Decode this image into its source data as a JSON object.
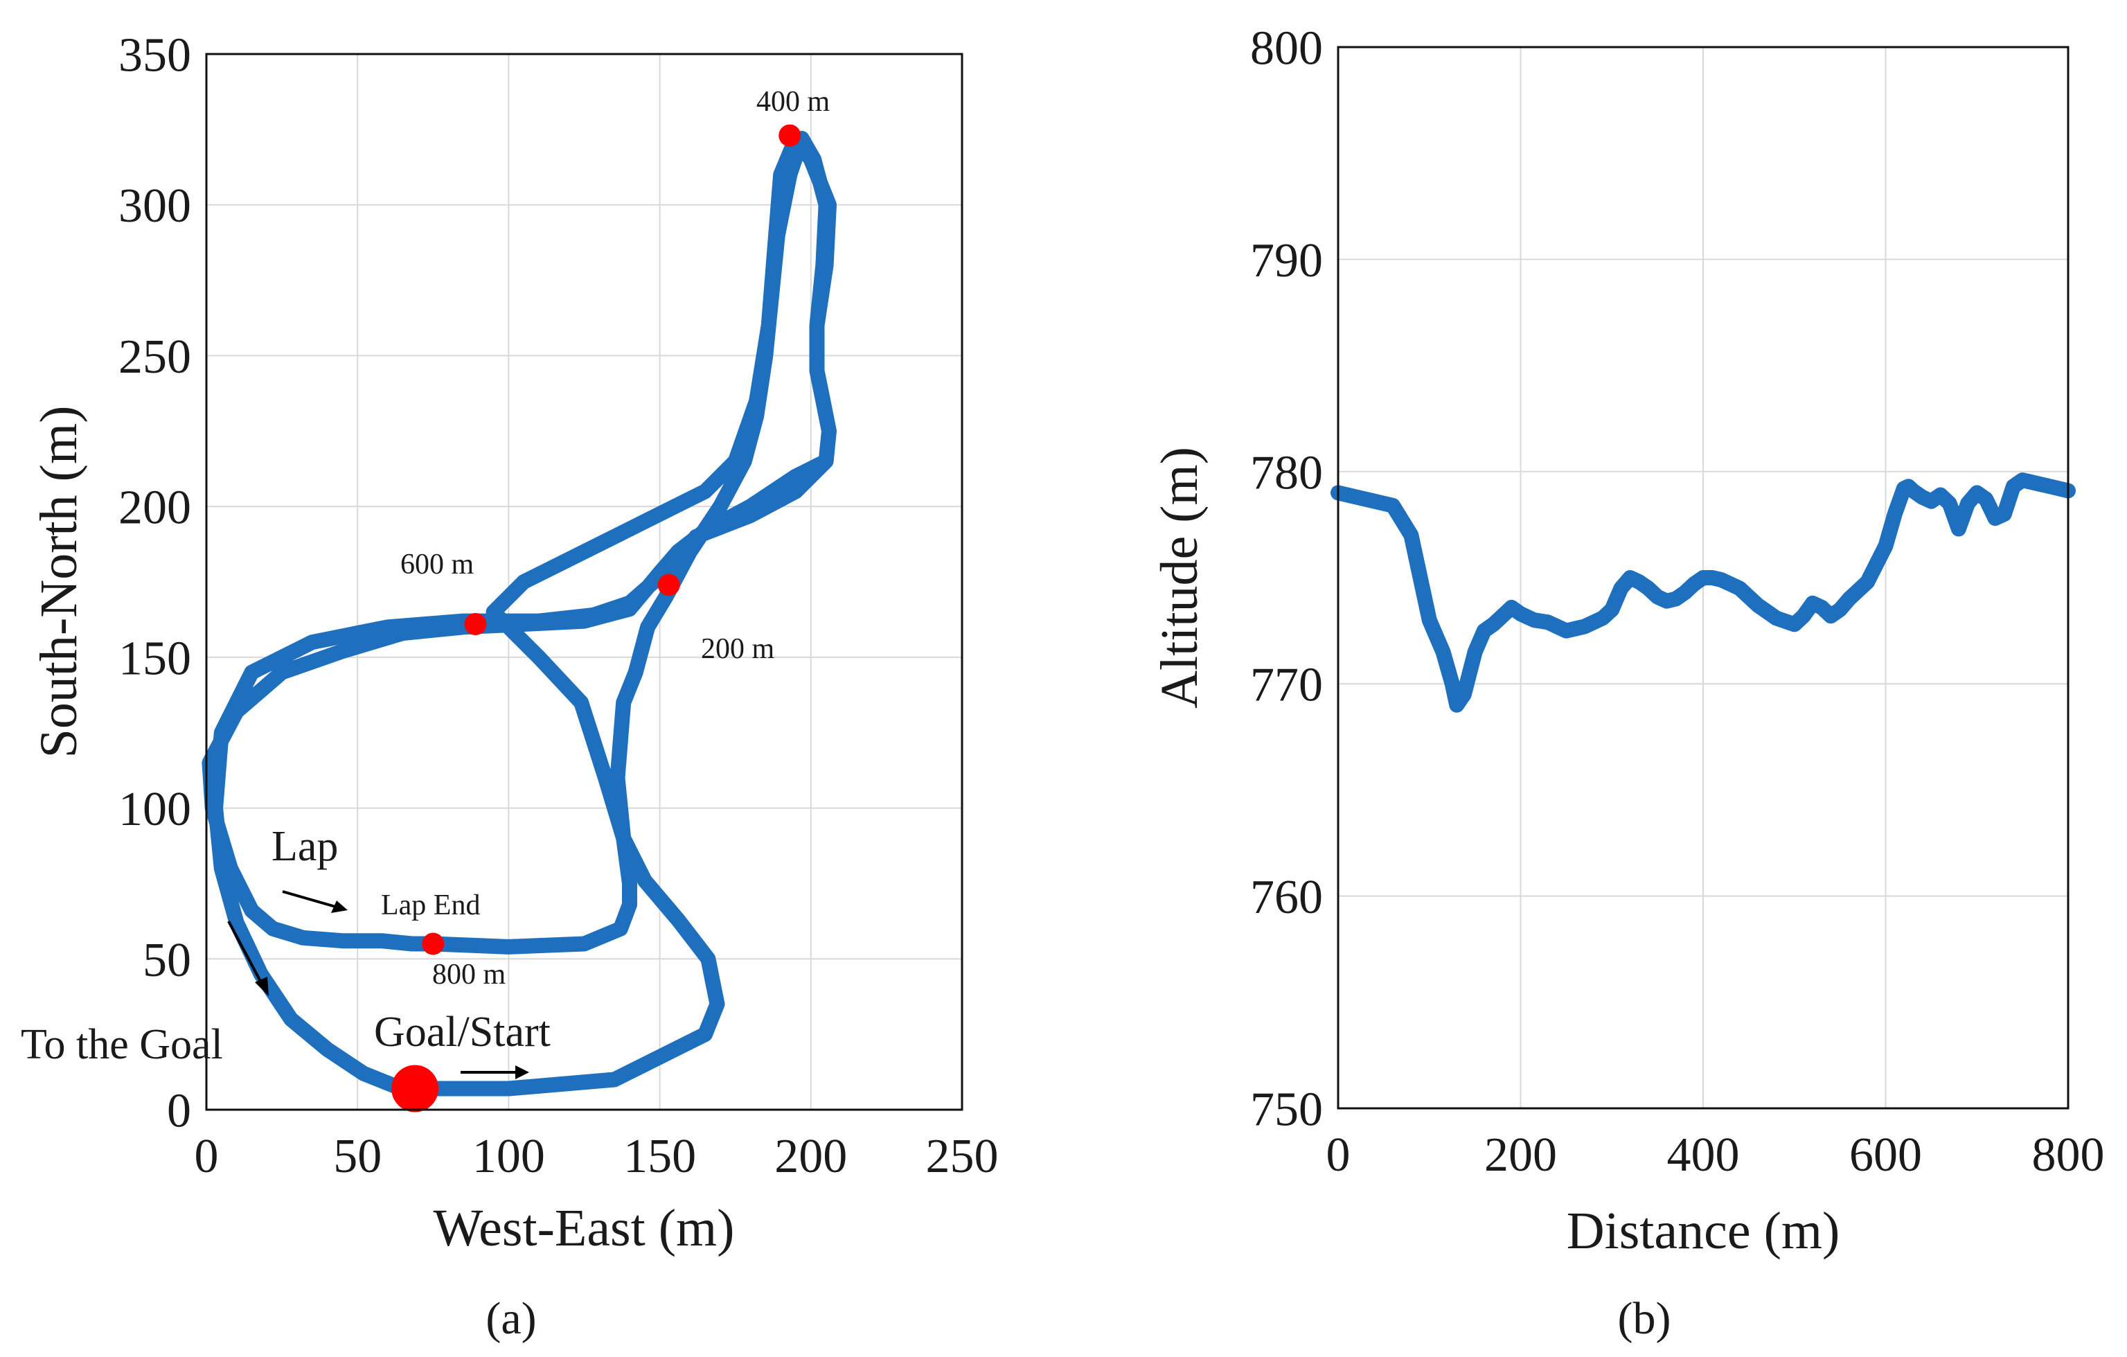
{
  "chart_data": [
    {
      "type": "line",
      "panel_label": "(a)",
      "xlabel": "West-East (m)",
      "ylabel": "South-North (m)",
      "xlim": [
        0,
        250
      ],
      "ylim": [
        0,
        350
      ],
      "xticks": [
        0,
        50,
        100,
        150,
        200,
        250
      ],
      "yticks": [
        0,
        50,
        100,
        150,
        200,
        250,
        300,
        350
      ],
      "grid": true,
      "series_color": "#1f6fbf",
      "marker_color": "#ff0000",
      "track": {
        "x": [
          69,
          100,
          135,
          165,
          169,
          166,
          156,
          145,
          138,
          136,
          138,
          142,
          146,
          152,
          160,
          170,
          178,
          182,
          185,
          187,
          189,
          193,
          197,
          201,
          205,
          204,
          202,
          202,
          204,
          206,
          205,
          195,
          180,
          165,
          156,
          150,
          145,
          140,
          125,
          105,
          85,
          65,
          45,
          25,
          10,
          1,
          2,
          8,
          15,
          22,
          32,
          45,
          58,
          68,
          75,
          100,
          125,
          137,
          140,
          140,
          138,
          132,
          124,
          110,
          100,
          95,
          105,
          125,
          145,
          155,
          165,
          175,
          182,
          186,
          188,
          190,
          195,
          200,
          206,
          205,
          202,
          202,
          204,
          206,
          205,
          195,
          180,
          162,
          156,
          148,
          140,
          128,
          110,
          85,
          60,
          35,
          15,
          5,
          3,
          5,
          10,
          18,
          28,
          40,
          52,
          62,
          69
        ],
        "y": [
          7,
          7,
          10,
          25,
          35,
          50,
          63,
          76,
          90,
          110,
          135,
          145,
          160,
          170,
          185,
          200,
          215,
          230,
          250,
          270,
          290,
          310,
          322,
          315,
          300,
          280,
          260,
          245,
          235,
          225,
          215,
          210,
          200,
          192,
          185,
          178,
          172,
          166,
          162,
          161,
          160,
          158,
          152,
          145,
          132,
          115,
          100,
          80,
          66,
          60,
          57,
          56,
          56,
          55,
          55,
          54,
          55,
          60,
          68,
          75,
          90,
          110,
          135,
          150,
          160,
          165,
          175,
          185,
          195,
          200,
          205,
          215,
          235,
          260,
          285,
          310,
          322,
          315,
          300,
          280,
          260,
          245,
          235,
          225,
          215,
          205,
          197,
          190,
          182,
          175,
          168,
          164,
          162,
          162,
          160,
          155,
          145,
          125,
          100,
          80,
          62,
          45,
          30,
          20,
          12,
          8,
          7
        ]
      },
      "markers": [
        {
          "x": 193,
          "y": 323,
          "label": "400 m",
          "size": "small"
        },
        {
          "x": 153,
          "y": 174,
          "label": "200 m",
          "size": "small"
        },
        {
          "x": 89,
          "y": 161,
          "label": "600 m",
          "size": "small"
        },
        {
          "x": 75,
          "y": 55,
          "label": "800 m",
          "size": "small"
        },
        {
          "x": 69,
          "y": 7,
          "label": "Goal/Start",
          "size": "large"
        }
      ],
      "annotations": {
        "lap_end": "Lap End",
        "lap": "Lap",
        "to_the_goal": "To the Goal"
      }
    },
    {
      "type": "line",
      "panel_label": "(b)",
      "xlabel": "Distance (m)",
      "ylabel": "Altitude (m)",
      "xlim": [
        0,
        800
      ],
      "ylim": [
        750,
        800
      ],
      "xticks": [
        0,
        200,
        400,
        600,
        800
      ],
      "yticks": [
        750,
        760,
        770,
        780,
        790,
        800
      ],
      "grid": true,
      "series_color": "#1f6fbf",
      "x": [
        0,
        20,
        40,
        60,
        80,
        100,
        115,
        125,
        130,
        138,
        150,
        160,
        170,
        180,
        190,
        200,
        215,
        230,
        250,
        270,
        290,
        300,
        310,
        320,
        330,
        340,
        350,
        360,
        370,
        380,
        390,
        400,
        410,
        420,
        430,
        440,
        460,
        480,
        500,
        510,
        520,
        530,
        540,
        550,
        560,
        580,
        600,
        610,
        620,
        625,
        630,
        640,
        650,
        660,
        670,
        680,
        690,
        700,
        710,
        720,
        730,
        740,
        750,
        760,
        770,
        780,
        800
      ],
      "y": [
        779,
        778.8,
        778.6,
        778.4,
        777,
        773,
        771.5,
        770,
        769,
        769.5,
        771.5,
        772.5,
        772.8,
        773.2,
        773.6,
        773.3,
        773,
        772.9,
        772.5,
        772.7,
        773.1,
        773.5,
        774.5,
        775,
        774.8,
        774.5,
        774.1,
        773.9,
        774,
        774.3,
        774.7,
        775,
        775,
        774.9,
        774.7,
        774.5,
        773.7,
        773.1,
        772.8,
        773.2,
        773.8,
        773.6,
        773.2,
        773.5,
        774,
        774.8,
        776.5,
        778,
        779.2,
        779.3,
        779.1,
        778.8,
        778.6,
        778.9,
        778.5,
        777.3,
        778.5,
        779,
        778.7,
        777.8,
        778,
        779.3,
        779.6,
        779.5,
        779.4,
        779.3,
        779.1
      ]
    }
  ]
}
